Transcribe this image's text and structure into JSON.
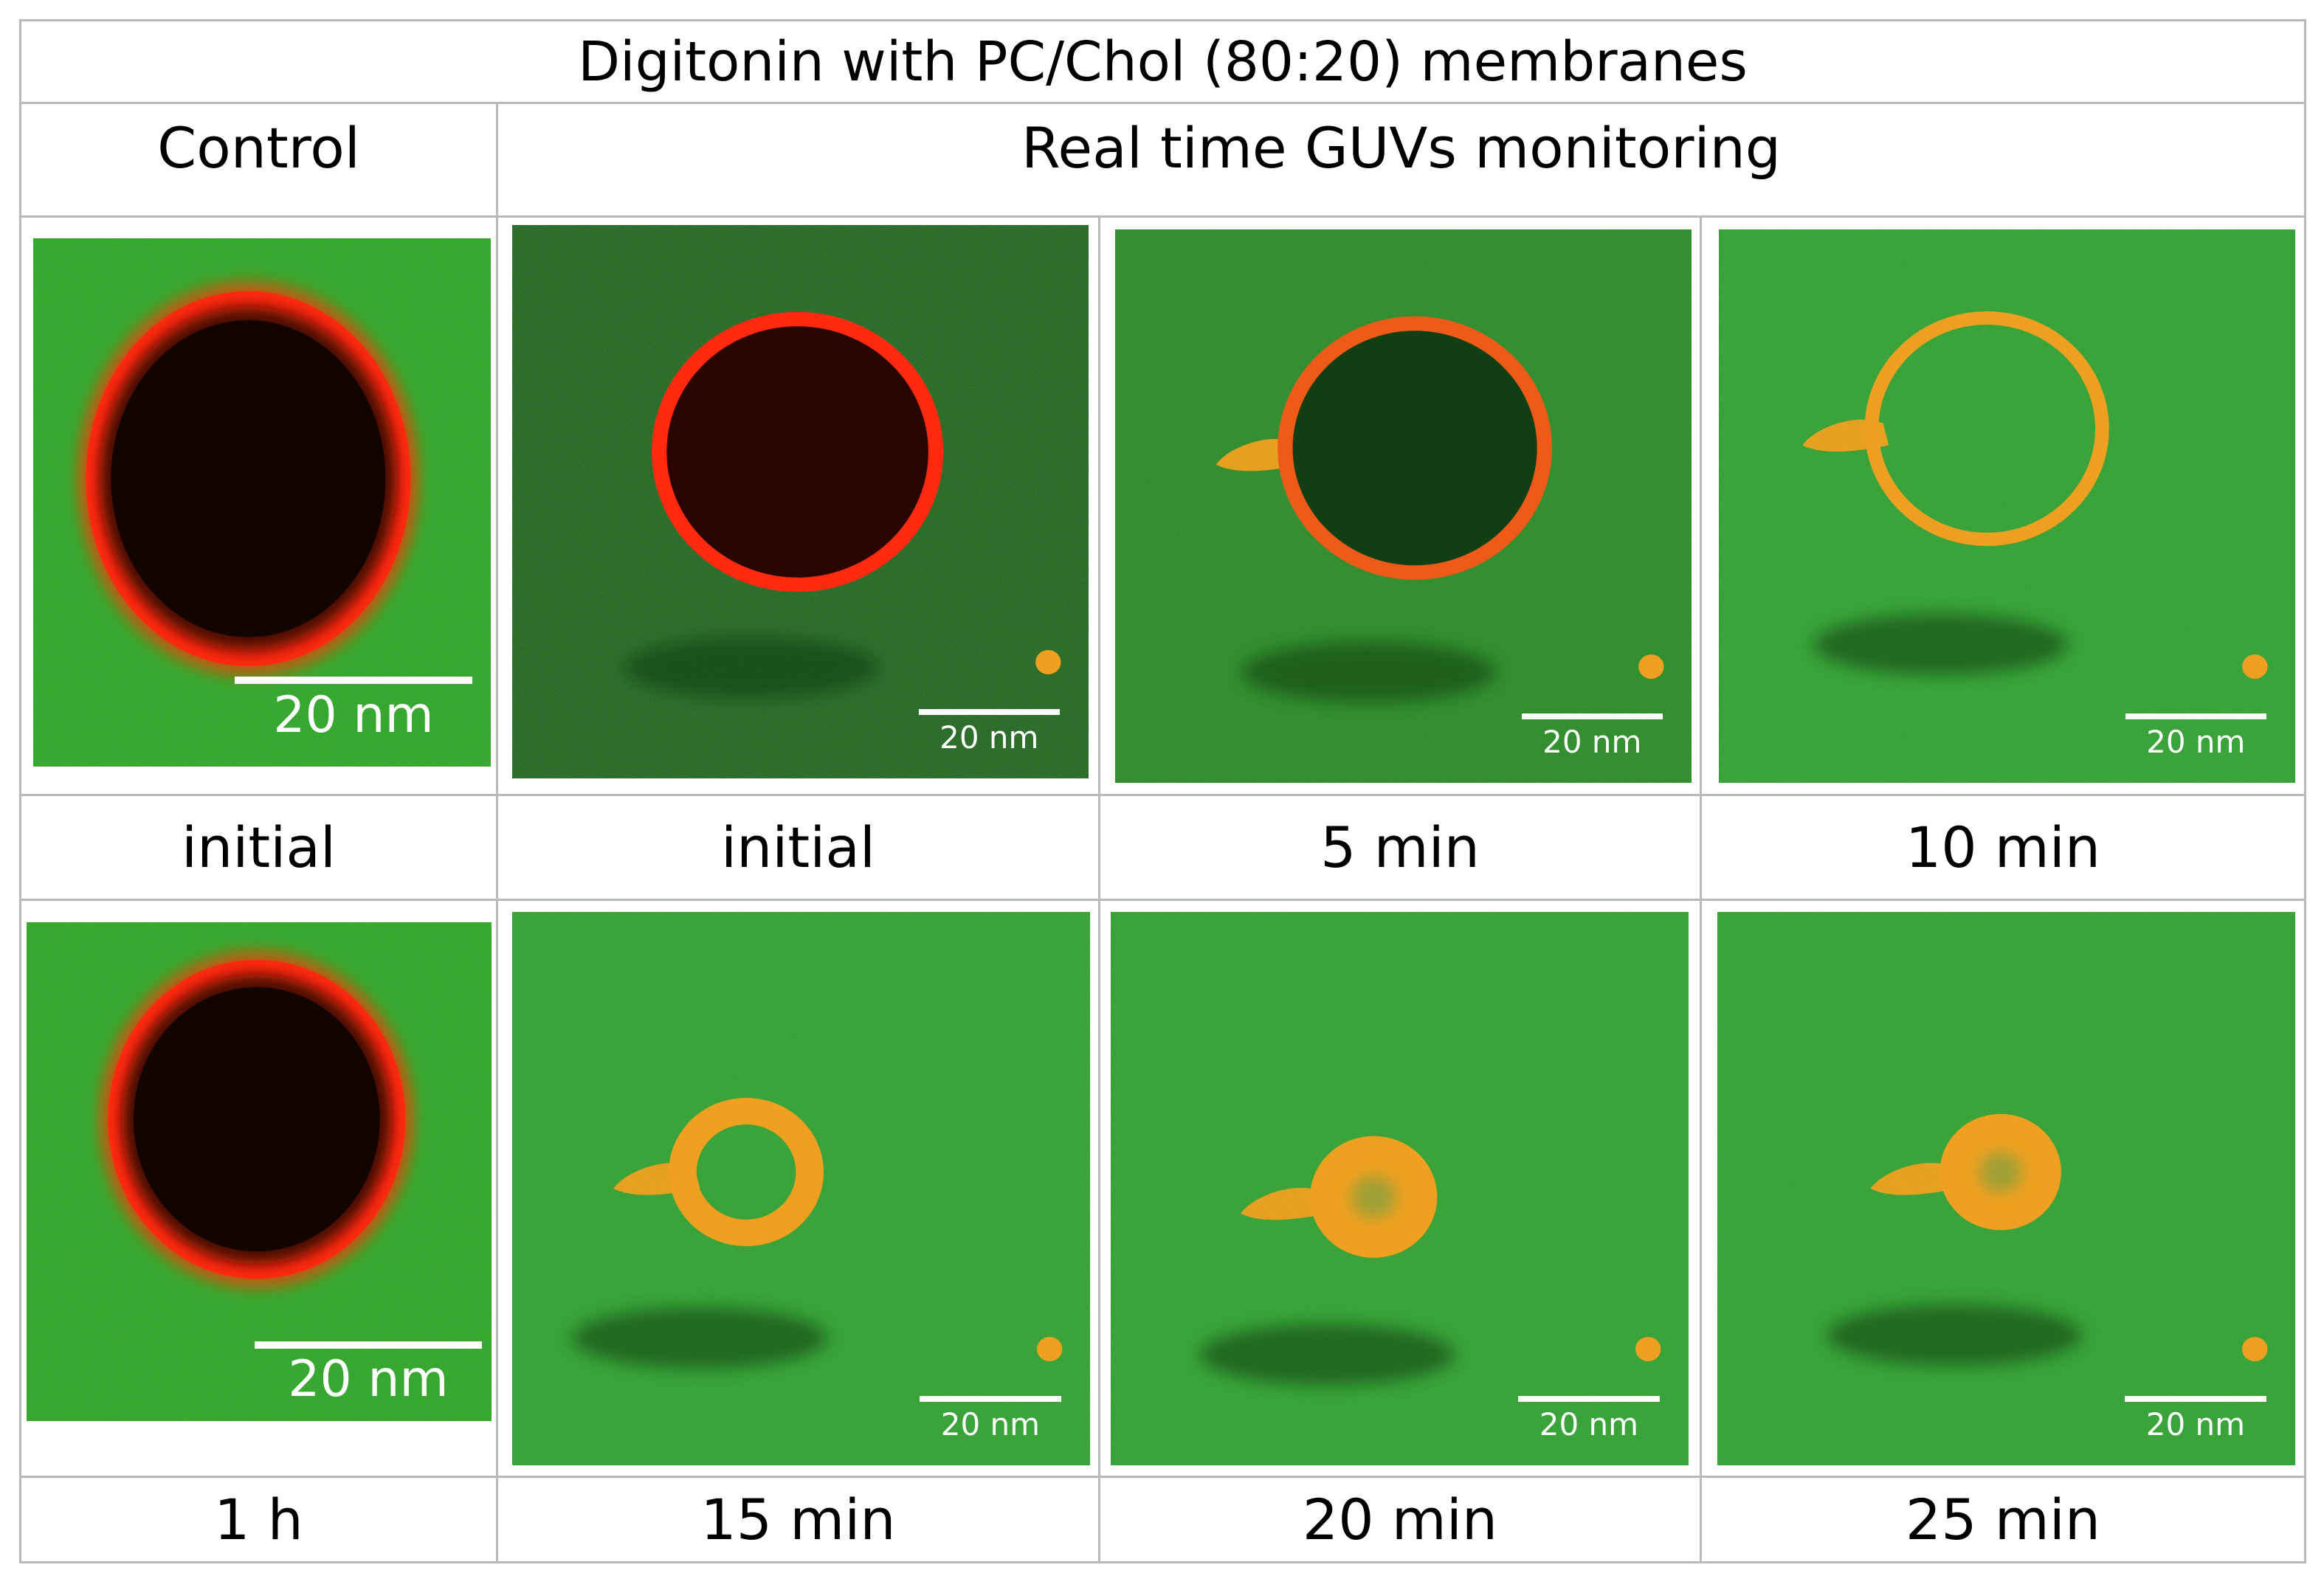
{
  "figure": {
    "title": "Digitonin with PC/Chol (80:20) membranes",
    "header_control": "Control",
    "header_realtime": "Real time GUVs monitoring"
  },
  "panels": [
    {
      "label": "initial",
      "scale_bar": "20 nm"
    },
    {
      "label": "initial",
      "scale_bar": "20 nm"
    },
    {
      "label": "5 min",
      "scale_bar": "20 nm"
    },
    {
      "label": "10 min",
      "scale_bar": "20 nm"
    },
    {
      "label": "1 h",
      "scale_bar": "20 nm"
    },
    {
      "label": "15 min",
      "scale_bar": "20 nm"
    },
    {
      "label": "20 min",
      "scale_bar": "20 nm"
    },
    {
      "label": "25 min",
      "scale_bar": "20 nm"
    }
  ],
  "colors": {
    "background_green": "#1f9a1f",
    "dark_green": "#0f5a14",
    "membrane_red": "#ff2a10",
    "membrane_orange": "#f0a020",
    "vesicle_interior": "#120400",
    "grid_line": "#b9b9b9"
  }
}
